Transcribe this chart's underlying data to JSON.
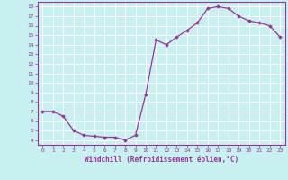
{
  "x": [
    0,
    1,
    2,
    3,
    4,
    5,
    6,
    7,
    8,
    9,
    10,
    11,
    12,
    13,
    14,
    15,
    16,
    17,
    18,
    19,
    20,
    21,
    22,
    23
  ],
  "y": [
    7.0,
    7.0,
    6.5,
    5.0,
    4.5,
    4.4,
    4.3,
    4.3,
    4.0,
    4.5,
    8.8,
    14.5,
    14.0,
    14.8,
    15.5,
    16.3,
    17.8,
    18.0,
    17.8,
    17.0,
    16.5,
    16.3,
    16.0,
    14.8
  ],
  "line_color": "#993399",
  "marker": "D",
  "marker_size": 1.8,
  "bg_color": "#c8f0f0",
  "grid_color": "#b0d8d8",
  "xlabel": "Windchill (Refroidissement éolien,°C)",
  "xlabel_color": "#993399",
  "tick_color": "#993399",
  "spine_color": "#993399",
  "xlim": [
    -0.5,
    23.5
  ],
  "ylim": [
    3.5,
    18.5
  ],
  "yticks": [
    4,
    5,
    6,
    7,
    8,
    9,
    10,
    11,
    12,
    13,
    14,
    15,
    16,
    17,
    18
  ],
  "xticks": [
    0,
    1,
    2,
    3,
    4,
    5,
    6,
    7,
    8,
    9,
    10,
    11,
    12,
    13,
    14,
    15,
    16,
    17,
    18,
    19,
    20,
    21,
    22,
    23
  ],
  "line_width": 0.9,
  "tick_fontsize": 4.5,
  "xlabel_fontsize": 5.5
}
